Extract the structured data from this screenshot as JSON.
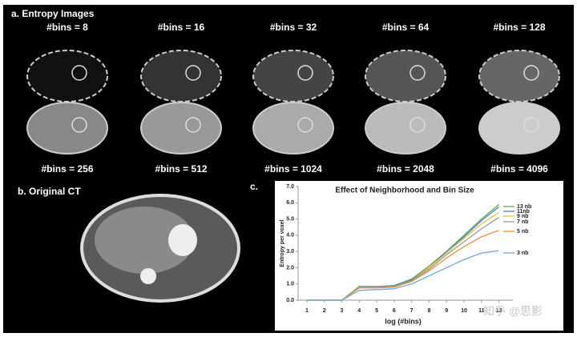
{
  "panel_a": {
    "title": "a.  Entropy Images",
    "labels": [
      "#bins = 8",
      "#bins = 16",
      "#bins = 32",
      "#bins = 64",
      "#bins = 128",
      "#bins = 256",
      "#bins = 512",
      "#bins = 1024",
      "#bins = 2048",
      "#bins = 4096"
    ]
  },
  "panel_b": {
    "title": "b.  Original CT"
  },
  "panel_c": {
    "label": "c."
  },
  "watermark": "知乎 @思影",
  "chart_data": {
    "type": "line",
    "title": "Effect of Neighborhood and Bin Size",
    "x_label": "log (#bins)",
    "y_label": "Entropy per voxel",
    "x": [
      1,
      2,
      3,
      4,
      5,
      6,
      7,
      8,
      9,
      10,
      11,
      12
    ],
    "xlim": [
      0.5,
      12.8
    ],
    "xticks": [
      1,
      2,
      3,
      4,
      5,
      6,
      7,
      8,
      9,
      10,
      11,
      12
    ],
    "ylim": [
      0,
      7
    ],
    "yticks": [
      {
        "value": 0,
        "label": "0.0"
      },
      {
        "value": 1,
        "label": "1.0"
      },
      {
        "value": 2,
        "label": "2.0"
      },
      {
        "value": 3,
        "label": "3.0"
      },
      {
        "value": 4,
        "label": "4.0"
      },
      {
        "value": 5,
        "label": "5.0"
      },
      {
        "value": 6,
        "label": "6.0"
      },
      {
        "value": 7,
        "label": "7.0"
      }
    ],
    "grid": false,
    "series": [
      {
        "name": "13 nb",
        "color": "#6aa84f",
        "values": [
          0,
          0,
          0,
          0.85,
          0.85,
          0.9,
          1.3,
          2.1,
          3.0,
          4.0,
          5.0,
          5.9
        ]
      },
      {
        "name": "11nb",
        "color": "#3d85c6",
        "values": [
          0,
          0,
          0,
          0.8,
          0.8,
          0.9,
          1.25,
          2.0,
          3.0,
          3.9,
          4.9,
          5.75
        ]
      },
      {
        "name": "9 nb",
        "color": "#f1c232",
        "values": [
          0,
          0,
          0,
          0.8,
          0.8,
          0.85,
          1.2,
          2.0,
          2.9,
          3.8,
          4.7,
          5.4
        ]
      },
      {
        "name": "7 nb",
        "color": "#999999",
        "values": [
          0,
          0,
          0,
          0.8,
          0.8,
          0.85,
          1.2,
          1.9,
          2.8,
          3.6,
          4.4,
          5.1
        ]
      },
      {
        "name": "5 nb",
        "color": "#e69138",
        "values": [
          0,
          0,
          0,
          0.75,
          0.75,
          0.8,
          1.15,
          1.8,
          2.6,
          3.3,
          3.9,
          4.3
        ]
      },
      {
        "name": "3 nb",
        "color": "#6fa8dc",
        "values": [
          0,
          0,
          0,
          0.6,
          0.65,
          0.7,
          1.0,
          1.5,
          2.0,
          2.5,
          2.9,
          3.05
        ]
      }
    ]
  }
}
